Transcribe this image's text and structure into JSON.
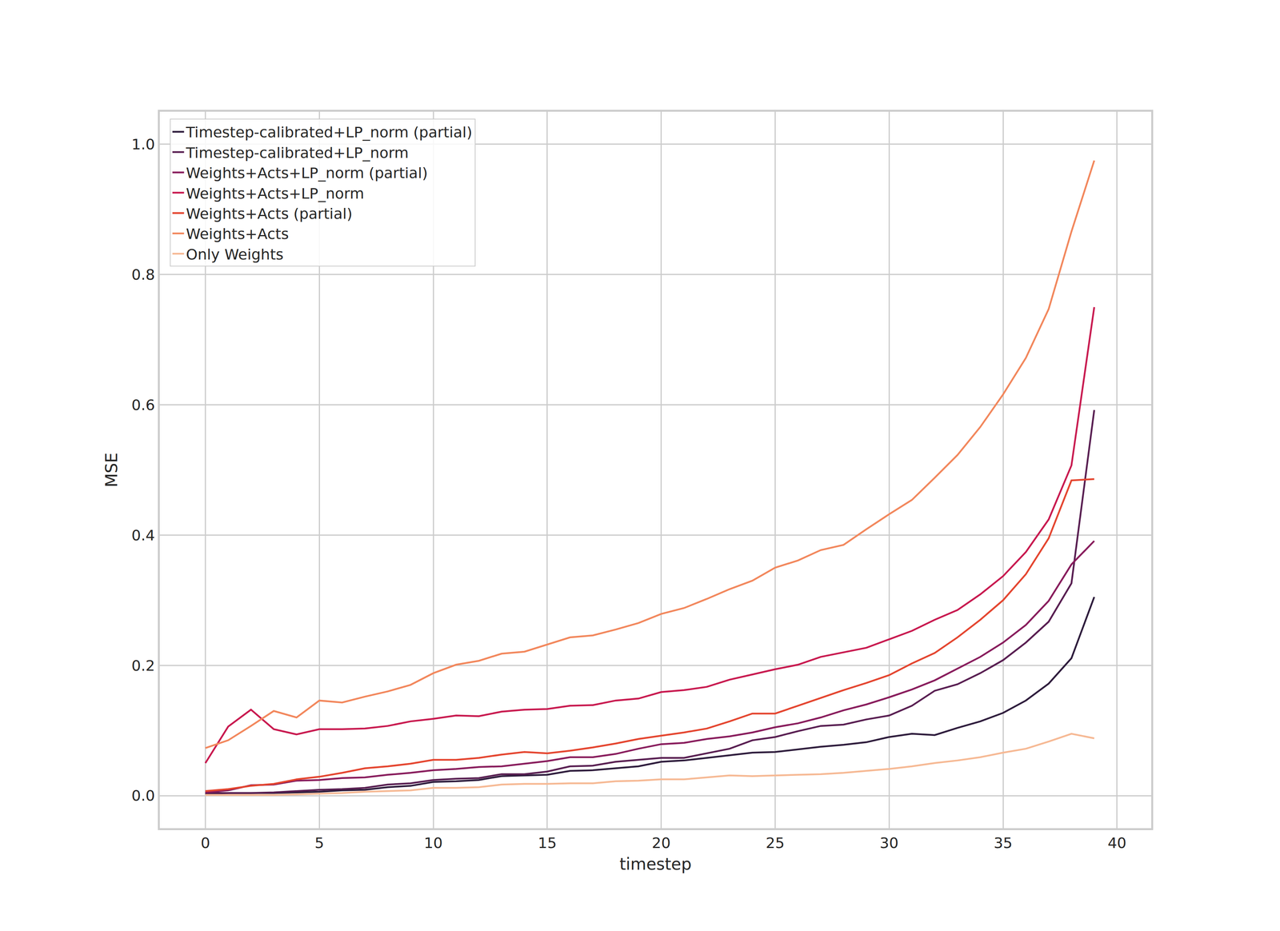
{
  "chart_data": {
    "type": "line",
    "x_label": "timestep",
    "y_label": "MSE",
    "x": [
      0,
      1,
      2,
      3,
      4,
      5,
      6,
      7,
      8,
      9,
      10,
      11,
      12,
      13,
      14,
      15,
      16,
      17,
      18,
      19,
      20,
      21,
      22,
      23,
      24,
      25,
      26,
      27,
      28,
      29,
      30,
      31,
      32,
      33,
      34,
      35,
      36,
      37,
      38,
      39
    ],
    "xlim": [
      -2,
      41.5
    ],
    "xticks": [
      0,
      5,
      10,
      15,
      20,
      25,
      30,
      35,
      40
    ],
    "ylim": [
      -0.05,
      1.05
    ],
    "yticks": [
      {
        "value": 0,
        "label": "0.0"
      },
      0.2,
      0.4,
      0.6,
      0.8,
      {
        "value": 1,
        "label": "1.0"
      }
    ],
    "grid": true,
    "legend": "upper left",
    "series": [
      {
        "name": "Timestep-calibrated+LP_norm (partial)",
        "color": "#2e1c3c",
        "values": [
          0.003,
          0.004,
          0.004,
          0.004,
          0.005,
          0.006,
          0.008,
          0.009,
          0.013,
          0.015,
          0.021,
          0.022,
          0.024,
          0.03,
          0.031,
          0.032,
          0.038,
          0.039,
          0.042,
          0.045,
          0.052,
          0.054,
          0.058,
          0.062,
          0.066,
          0.067,
          0.071,
          0.075,
          0.078,
          0.082,
          0.09,
          0.095,
          0.093,
          0.104,
          0.114,
          0.127,
          0.146,
          0.172,
          0.211,
          0.305
        ]
      },
      {
        "name": "Timestep-calibrated+LP_norm",
        "color": "#581e51",
        "values": [
          0.004,
          0.004,
          0.004,
          0.005,
          0.007,
          0.009,
          0.01,
          0.012,
          0.017,
          0.019,
          0.024,
          0.026,
          0.027,
          0.033,
          0.033,
          0.037,
          0.045,
          0.046,
          0.052,
          0.055,
          0.058,
          0.058,
          0.065,
          0.072,
          0.085,
          0.09,
          0.099,
          0.107,
          0.109,
          0.117,
          0.123,
          0.138,
          0.161,
          0.171,
          0.188,
          0.208,
          0.235,
          0.267,
          0.326,
          0.592
        ]
      },
      {
        "name": "Weights+Acts+LP_norm (partial)",
        "color": "#881c5c",
        "values": [
          0.005,
          0.008,
          0.016,
          0.017,
          0.023,
          0.024,
          0.027,
          0.028,
          0.032,
          0.035,
          0.039,
          0.041,
          0.044,
          0.045,
          0.049,
          0.053,
          0.059,
          0.059,
          0.064,
          0.072,
          0.079,
          0.081,
          0.087,
          0.091,
          0.097,
          0.105,
          0.111,
          0.12,
          0.131,
          0.14,
          0.151,
          0.163,
          0.177,
          0.195,
          0.213,
          0.235,
          0.262,
          0.299,
          0.355,
          0.391
        ]
      },
      {
        "name": "Weights+Acts+LP_norm",
        "color": "#c8194f",
        "values": [
          0.05,
          0.106,
          0.132,
          0.102,
          0.094,
          0.102,
          0.102,
          0.103,
          0.107,
          0.114,
          0.118,
          0.123,
          0.122,
          0.129,
          0.132,
          0.133,
          0.138,
          0.139,
          0.146,
          0.149,
          0.159,
          0.162,
          0.167,
          0.178,
          0.186,
          0.194,
          0.201,
          0.213,
          0.22,
          0.227,
          0.24,
          0.253,
          0.27,
          0.285,
          0.309,
          0.337,
          0.374,
          0.424,
          0.507,
          0.75
        ]
      },
      {
        "name": "Weights+Acts (partial)",
        "color": "#e4452f",
        "values": [
          0.007,
          0.01,
          0.015,
          0.018,
          0.025,
          0.029,
          0.035,
          0.042,
          0.045,
          0.049,
          0.055,
          0.055,
          0.058,
          0.063,
          0.067,
          0.065,
          0.069,
          0.074,
          0.08,
          0.087,
          0.092,
          0.097,
          0.103,
          0.114,
          0.126,
          0.126,
          0.138,
          0.15,
          0.162,
          0.173,
          0.185,
          0.203,
          0.219,
          0.243,
          0.27,
          0.3,
          0.34,
          0.395,
          0.484,
          0.486
        ]
      },
      {
        "name": "Weights+Acts",
        "color": "#f2875c",
        "values": [
          0.073,
          0.085,
          0.107,
          0.13,
          0.12,
          0.146,
          0.143,
          0.152,
          0.16,
          0.17,
          0.188,
          0.201,
          0.207,
          0.218,
          0.221,
          0.232,
          0.243,
          0.246,
          0.255,
          0.265,
          0.279,
          0.288,
          0.302,
          0.317,
          0.33,
          0.35,
          0.361,
          0.377,
          0.385,
          0.409,
          0.432,
          0.454,
          0.488,
          0.523,
          0.566,
          0.616,
          0.672,
          0.747,
          0.866,
          0.975
        ]
      },
      {
        "name": "Only Weights",
        "color": "#f6b994",
        "values": [
          0.001,
          0.001,
          0.001,
          0.001,
          0.002,
          0.003,
          0.004,
          0.006,
          0.007,
          0.008,
          0.012,
          0.012,
          0.013,
          0.017,
          0.018,
          0.018,
          0.019,
          0.019,
          0.022,
          0.023,
          0.025,
          0.025,
          0.028,
          0.031,
          0.03,
          0.031,
          0.032,
          0.033,
          0.035,
          0.038,
          0.041,
          0.045,
          0.05,
          0.054,
          0.059,
          0.066,
          0.072,
          0.083,
          0.095,
          0.088
        ]
      }
    ]
  }
}
